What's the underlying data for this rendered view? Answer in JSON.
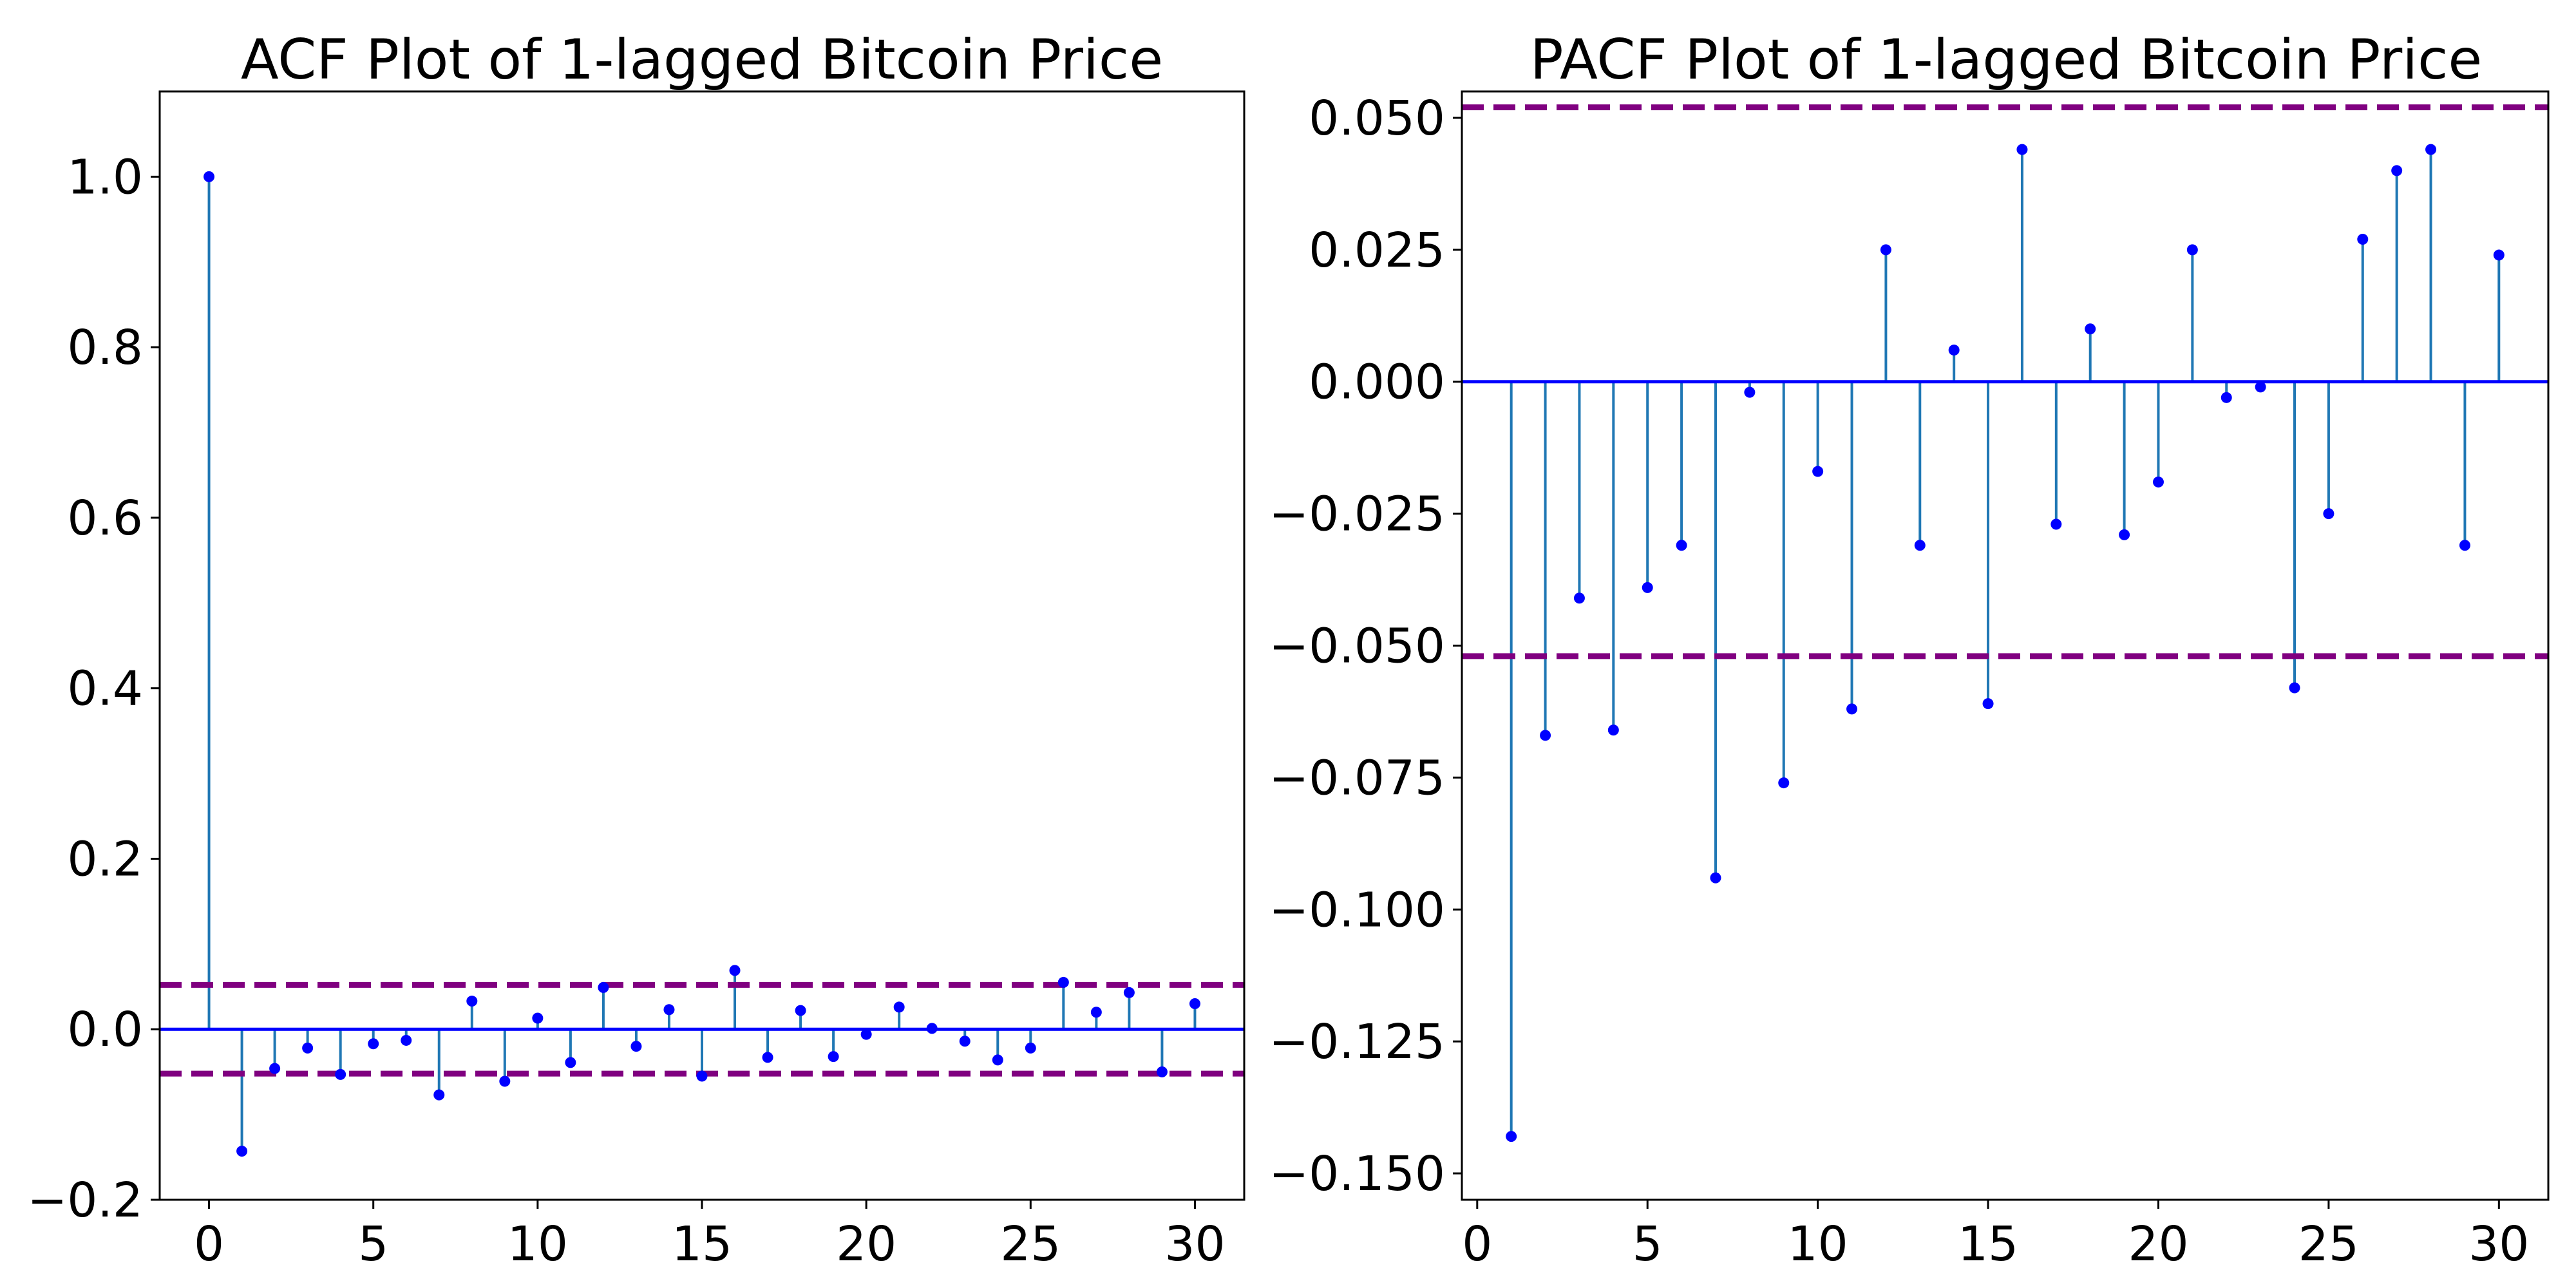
{
  "colors": {
    "stem": "#1f77b4",
    "marker": "#0000ff",
    "baseline": "#0000ff",
    "confidence": "#800080",
    "axes": "#000000",
    "background": "#ffffff"
  },
  "chart_data": [
    {
      "type": "stem",
      "title": "ACF Plot of 1-lagged Bitcoin Price",
      "xlabel": "",
      "ylabel": "",
      "xlim": [
        -1.5,
        31.5
      ],
      "ylim": [
        -0.2,
        1.1
      ],
      "xticks": [
        0,
        5,
        10,
        15,
        20,
        25,
        30
      ],
      "xtick_labels": [
        "0",
        "5",
        "10",
        "15",
        "20",
        "25",
        "30"
      ],
      "yticks": [
        -0.2,
        0.0,
        0.2,
        0.4,
        0.6,
        0.8,
        1.0
      ],
      "ytick_labels": [
        "−0.2",
        "0.0",
        "0.2",
        "0.4",
        "0.6",
        "0.8",
        "1.0"
      ],
      "confidence_band": [
        -0.052,
        0.052
      ],
      "grid": false,
      "legend": "none",
      "x": [
        0,
        1,
        2,
        3,
        4,
        5,
        6,
        7,
        8,
        9,
        10,
        11,
        12,
        13,
        14,
        15,
        16,
        17,
        18,
        19,
        20,
        21,
        22,
        23,
        24,
        25,
        26,
        27,
        28,
        29,
        30
      ],
      "values": [
        1.0,
        -0.143,
        -0.046,
        -0.022,
        -0.053,
        -0.017,
        -0.013,
        -0.077,
        0.033,
        -0.061,
        0.013,
        -0.039,
        0.049,
        -0.02,
        0.023,
        -0.055,
        0.069,
        -0.033,
        0.022,
        -0.032,
        -0.006,
        0.026,
        0.001,
        -0.014,
        -0.036,
        -0.022,
        0.055,
        0.02,
        0.043,
        -0.05,
        0.03
      ]
    },
    {
      "type": "stem",
      "title": "PACF Plot of 1-lagged Bitcoin Price",
      "xlabel": "",
      "ylabel": "",
      "xlim": [
        -0.45,
        31.45
      ],
      "ylim": [
        -0.155,
        0.055
      ],
      "xticks": [
        0,
        5,
        10,
        15,
        20,
        25,
        30
      ],
      "xtick_labels": [
        "0",
        "5",
        "10",
        "15",
        "20",
        "25",
        "30"
      ],
      "yticks": [
        -0.15,
        -0.125,
        -0.1,
        -0.075,
        -0.05,
        -0.025,
        0.0,
        0.025,
        0.05
      ],
      "ytick_labels": [
        "−0.150",
        "−0.125",
        "−0.100",
        "−0.075",
        "−0.050",
        "−0.025",
        "0.000",
        "0.025",
        "0.050"
      ],
      "confidence_band": [
        -0.052,
        0.052
      ],
      "grid": false,
      "legend": "none",
      "x": [
        1,
        2,
        3,
        4,
        5,
        6,
        7,
        8,
        9,
        10,
        11,
        12,
        13,
        14,
        15,
        16,
        17,
        18,
        19,
        20,
        21,
        22,
        23,
        24,
        25,
        26,
        27,
        28,
        29,
        30
      ],
      "values": [
        -0.143,
        -0.067,
        -0.041,
        -0.066,
        -0.039,
        -0.031,
        -0.094,
        -0.002,
        -0.076,
        -0.017,
        -0.062,
        0.025,
        -0.031,
        0.006,
        -0.061,
        0.044,
        -0.027,
        0.01,
        -0.029,
        -0.019,
        0.025,
        -0.003,
        -0.001,
        -0.058,
        -0.025,
        0.027,
        0.04,
        0.044,
        -0.031,
        0.024
      ]
    }
  ]
}
